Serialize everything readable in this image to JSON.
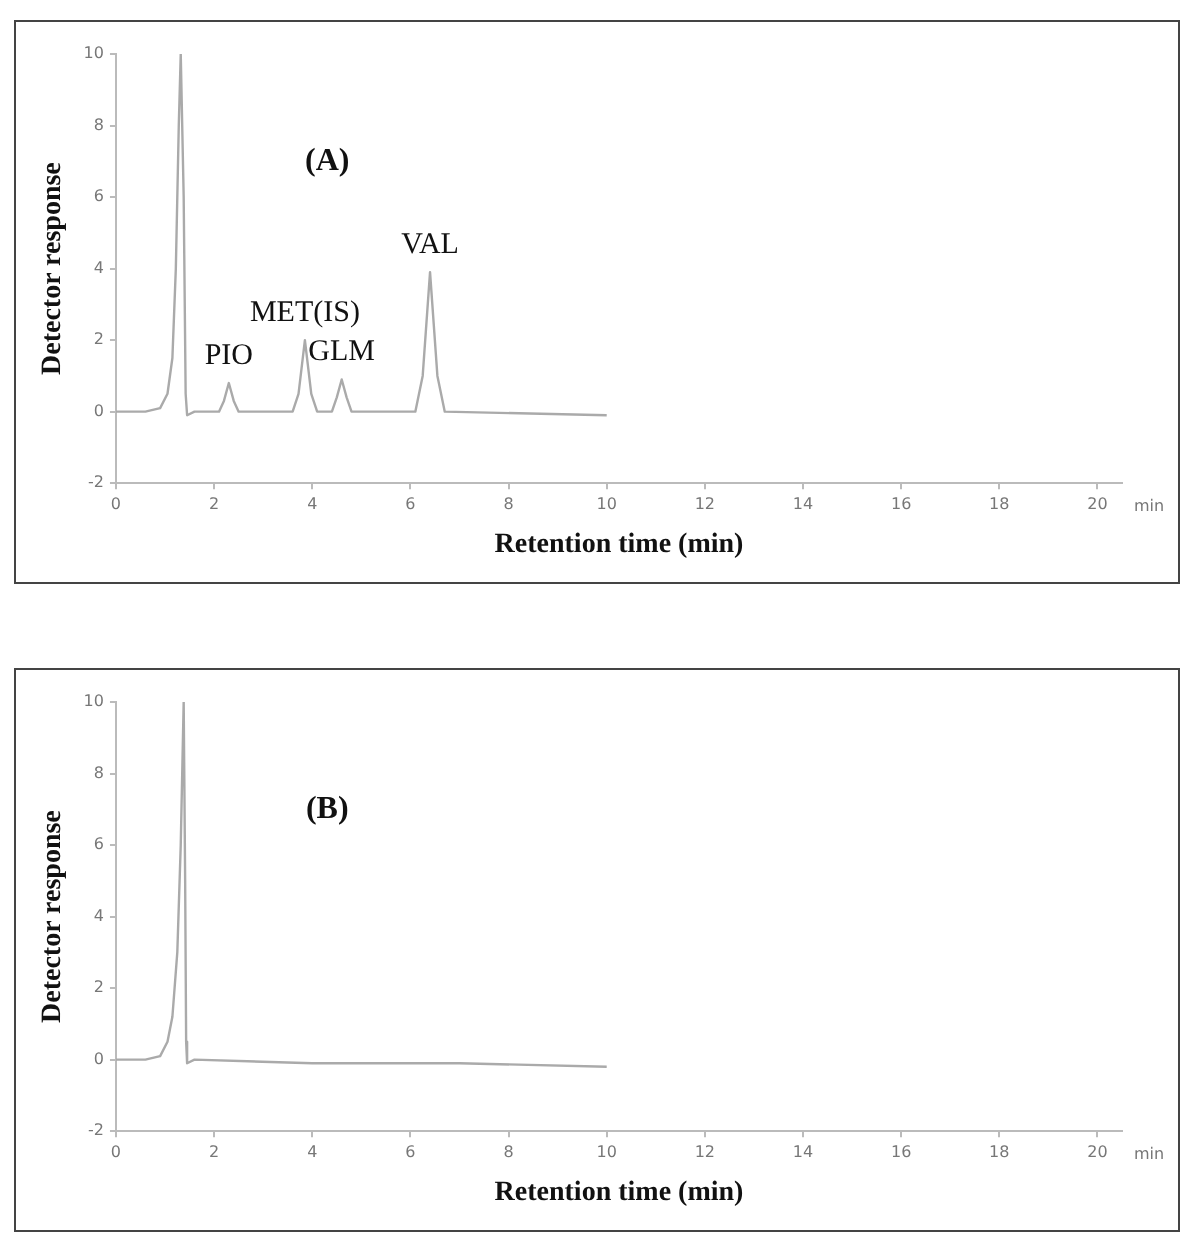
{
  "chart_data": [
    {
      "type": "line",
      "title": "(A)",
      "xlabel": "Retention time (min)",
      "ylabel": "Detector response",
      "color": "#aaaaaa",
      "marker": "none",
      "x": [
        0,
        0.6,
        0.9,
        1.05,
        1.15,
        1.22,
        1.28,
        1.32,
        1.38,
        1.42,
        1.45,
        1.6,
        2.1,
        2.2,
        2.3,
        2.4,
        2.5,
        3.6,
        3.72,
        3.85,
        3.98,
        4.1,
        4.4,
        4.5,
        4.6,
        4.7,
        4.8,
        6.1,
        6.25,
        6.4,
        6.55,
        6.7,
        10
      ],
      "values": [
        0,
        0,
        0.1,
        0.5,
        1.5,
        4,
        8,
        10,
        6,
        0.5,
        -0.1,
        0,
        0,
        0.3,
        0.8,
        0.3,
        0,
        0,
        0.5,
        2,
        0.5,
        0,
        0,
        0.4,
        0.9,
        0.4,
        0,
        0,
        1,
        3.9,
        1,
        0,
        -0.1
      ],
      "xlim": [
        0,
        20.5
      ],
      "xticks": [
        0,
        2,
        4,
        6,
        8,
        10,
        12,
        14,
        16,
        18,
        20
      ],
      "ylim": [
        -2,
        10
      ],
      "yticks": [
        -2,
        0,
        2,
        4,
        6,
        8,
        10
      ],
      "annotations": [
        {
          "text": "PIO",
          "x": 2.3,
          "y": 0.8
        },
        {
          "text": "MET(IS)",
          "x": 3.85,
          "y": 2
        },
        {
          "text": "GLM",
          "x": 4.6,
          "y": 0.9
        },
        {
          "text": "VAL",
          "x": 6.4,
          "y": 3.9
        },
        "min"
      ]
    },
    {
      "type": "line",
      "title": "(B)",
      "xlabel": "Retention time (min)",
      "ylabel": "Detector response",
      "color": "#aaaaaa",
      "marker": "none",
      "x": [
        0,
        0.6,
        0.9,
        1.05,
        1.15,
        1.25,
        1.32,
        1.38,
        1.41,
        1.43,
        1.45,
        1.6,
        4,
        7,
        10
      ],
      "values": [
        0,
        0,
        0.1,
        0.5,
        1.2,
        3,
        6,
        10,
        5,
        0.5,
        -0.1,
        0,
        -0.1,
        -0.1,
        -0.2
      ],
      "xlim": [
        0,
        20.5
      ],
      "xticks": [
        0,
        2,
        4,
        6,
        8,
        10,
        12,
        14,
        16,
        18,
        20
      ],
      "ylim": [
        -2,
        10
      ],
      "yticks": [
        -2,
        0,
        2,
        4,
        6,
        8,
        10
      ],
      "annotations": [
        "min"
      ]
    }
  ]
}
